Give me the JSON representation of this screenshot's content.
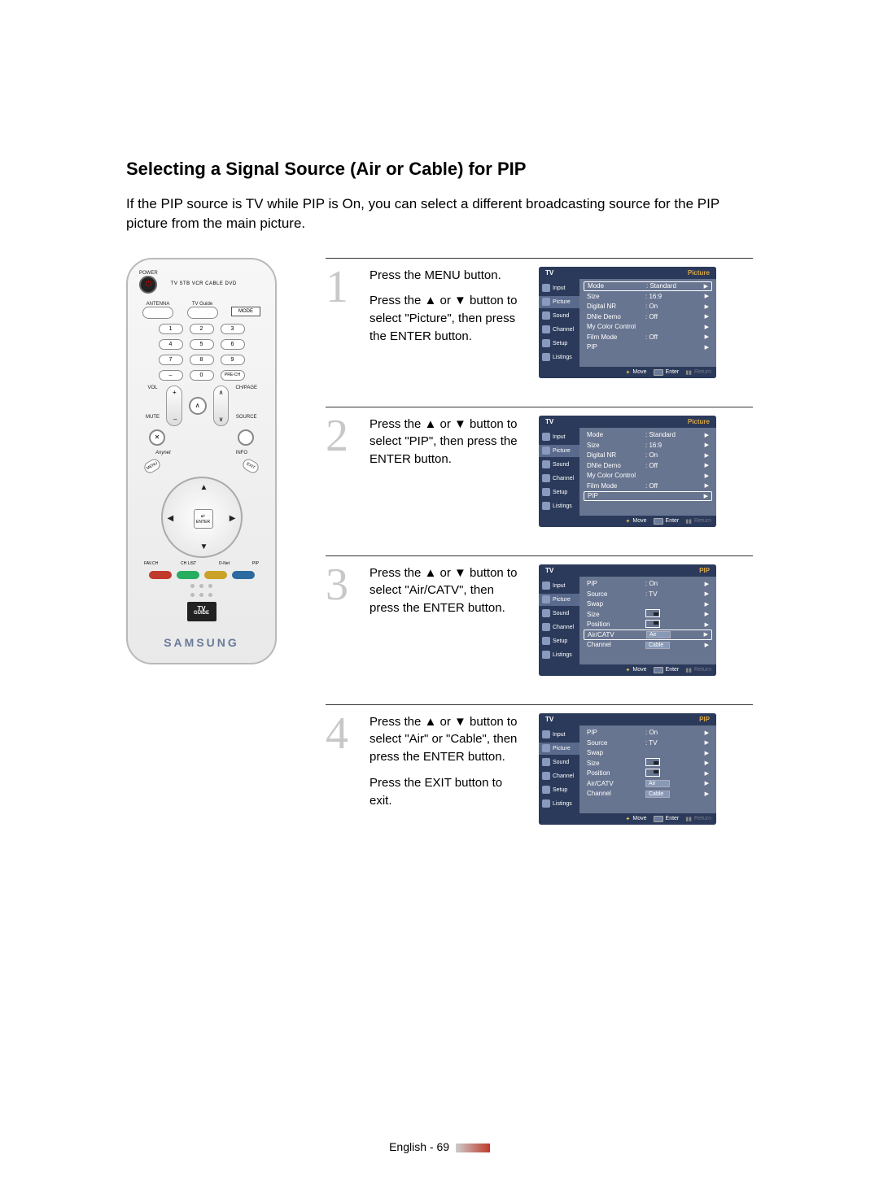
{
  "heading": "Selecting a Signal Source (Air or Cable) for PIP",
  "intro": "If the PIP source is TV while PIP is On, you can select a different broadcasting source for the PIP picture from the main picture.",
  "remote": {
    "power_label": "POWER",
    "mode_labels": "TV  STB  VCR  CABLE  DVD",
    "row_labels": {
      "antenna": "ANTENNA",
      "tvguide": "TV Guide",
      "mode": "MODE"
    },
    "numbers": [
      "1",
      "2",
      "3",
      "4",
      "5",
      "6",
      "7",
      "8",
      "9",
      "–",
      "0",
      "PRE-CH"
    ],
    "vol": "VOL",
    "ch": "CH/PAGE",
    "mute": "MUTE",
    "source": "SOURCE",
    "anynet": "Anynet",
    "info": "INFO",
    "menu": "MENU",
    "exit": "EXIT",
    "enter": "ENTER",
    "enter_sym": "↵",
    "fav": "FAV.CH",
    "chlist": "CH LIST",
    "dnet": "D-Net",
    "pip": "PIP",
    "color_buttons": [
      "#c0392b",
      "#27ae60",
      "#c9a227",
      "#2c6aa0"
    ],
    "tvguide_top": "TV",
    "tvguide_bottom": "GUIDE",
    "brand": "SAMSUNG"
  },
  "steps": [
    {
      "num": "1",
      "text": [
        "Press the MENU button.",
        "Press the ▲ or ▼ button to select \"Picture\", then press the ENTER button."
      ],
      "osd_title": "Picture",
      "osd_tv": "TV",
      "nav_active": "Picture",
      "rows": [
        {
          "l": "Mode",
          "v": ": Standard",
          "sel": true,
          "arrow": true
        },
        {
          "l": "Size",
          "v": ": 16:9",
          "arrow": true
        },
        {
          "l": "Digital NR",
          "v": ": On",
          "arrow": true
        },
        {
          "l": "DNIe Demo",
          "v": ": Off",
          "arrow": true
        },
        {
          "l": "My Color Control",
          "arrow": true
        },
        {
          "l": "Film Mode",
          "v": ": Off",
          "arrow": true
        },
        {
          "l": "PIP",
          "arrow": true
        }
      ]
    },
    {
      "num": "2",
      "text": [
        "Press the ▲ or ▼ button to select \"PIP\", then press the ENTER button."
      ],
      "osd_title": "Picture",
      "osd_tv": "TV",
      "nav_active": "Picture",
      "rows": [
        {
          "l": "Mode",
          "v": ": Standard",
          "arrow": true
        },
        {
          "l": "Size",
          "v": ": 16:9",
          "arrow": true
        },
        {
          "l": "Digital NR",
          "v": ": On",
          "arrow": true
        },
        {
          "l": "DNIe Demo",
          "v": ": Off",
          "arrow": true
        },
        {
          "l": "My Color Control",
          "arrow": true
        },
        {
          "l": "Film Mode",
          "v": ": Off",
          "arrow": true
        },
        {
          "l": "PIP",
          "sel": true,
          "arrow": true
        }
      ]
    },
    {
      "num": "3",
      "text": [
        "Press the ▲ or ▼ button to select \"Air/CATV\", then press the ENTER button."
      ],
      "osd_title": "PIP",
      "osd_tv": "TV",
      "nav_active": "Picture",
      "rows": [
        {
          "l": "PIP",
          "v": ": On",
          "arrow": true
        },
        {
          "l": "Source",
          "v": ": TV",
          "arrow": true
        },
        {
          "l": "Swap",
          "arrow": true
        },
        {
          "l": "Size",
          "pic": "size",
          "arrow": true
        },
        {
          "l": "Position",
          "pic": "pos",
          "arrow": true
        },
        {
          "l": "Air/CATV",
          "box": "Air",
          "sel": true,
          "arrow": true
        },
        {
          "l": "Channel",
          "box": "Cable",
          "arrow": true
        }
      ]
    },
    {
      "num": "4",
      "text": [
        "Press the ▲ or ▼ button to select \"Air\" or \"Cable\", then press the ENTER button.",
        "Press the EXIT button to exit."
      ],
      "osd_title": "PIP",
      "osd_tv": "TV",
      "nav_active": "Picture",
      "rows": [
        {
          "l": "PIP",
          "v": ": On",
          "arrow": true
        },
        {
          "l": "Source",
          "v": ": TV",
          "arrow": true
        },
        {
          "l": "Swap",
          "arrow": true
        },
        {
          "l": "Size",
          "pic": "size",
          "arrow": true
        },
        {
          "l": "Position",
          "pic": "pos",
          "arrow": true
        },
        {
          "l": "Air/CATV",
          "box": "Air",
          "arrow": true
        },
        {
          "l": "Channel",
          "box": "Cable",
          "arrow": true
        }
      ]
    }
  ],
  "osd_nav": [
    "Input",
    "Picture",
    "Sound",
    "Channel",
    "Setup",
    "Listings"
  ],
  "osd_footer": {
    "move": "Move",
    "enter": "Enter",
    "return": "Return"
  },
  "footer": {
    "lang": "English",
    "page": "69"
  }
}
